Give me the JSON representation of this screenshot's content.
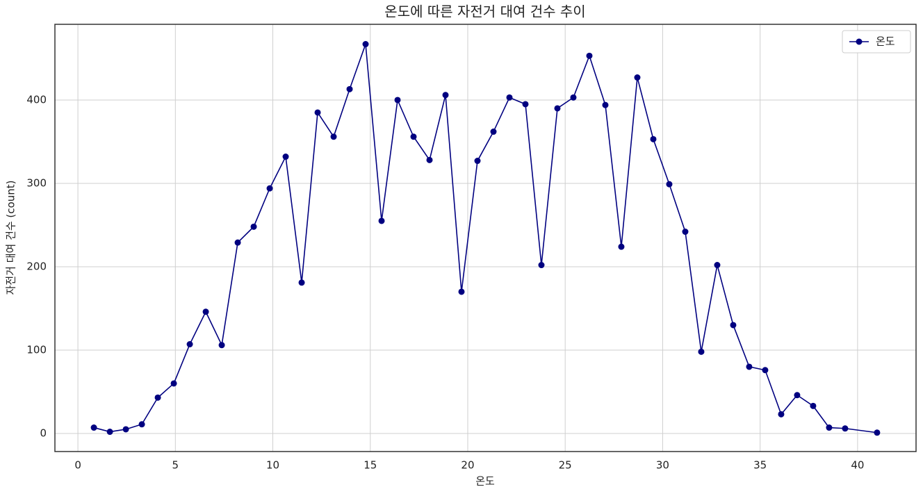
{
  "chart_data": {
    "type": "line",
    "title": "온도에 따른 자전거 대여 건수 추이",
    "x_label": "온도",
    "y_label": "자전거 대여 건수 (count)",
    "x": [
      0.82,
      1.64,
      2.46,
      3.28,
      4.1,
      4.92,
      5.74,
      6.56,
      7.38,
      8.2,
      9.02,
      9.84,
      10.66,
      11.48,
      12.3,
      13.12,
      13.94,
      14.76,
      15.58,
      16.4,
      17.22,
      18.04,
      18.86,
      19.68,
      20.5,
      21.32,
      22.14,
      22.96,
      23.78,
      24.6,
      25.42,
      26.24,
      27.06,
      27.88,
      28.7,
      29.52,
      30.34,
      31.16,
      31.98,
      32.8,
      33.62,
      34.44,
      35.26,
      36.08,
      36.9,
      37.72,
      38.54,
      39.36,
      41.0
    ],
    "series": [
      {
        "name": "온도",
        "color": "#000080",
        "values": [
          7,
          2,
          5,
          11,
          43,
          60,
          107,
          146,
          106,
          229,
          248,
          294,
          332,
          181,
          385,
          356,
          413,
          467,
          255,
          400,
          356,
          328,
          406,
          170,
          327,
          362,
          403,
          395,
          202,
          390,
          403,
          453,
          394,
          224,
          427,
          353,
          299,
          242,
          98,
          202,
          130,
          80,
          76,
          23,
          46,
          33,
          7,
          6,
          1
        ]
      }
    ],
    "xlim": [
      -1.18,
      43.0
    ],
    "ylim": [
      -21.7,
      490.8
    ],
    "xticks": [
      0,
      5,
      10,
      15,
      20,
      25,
      30,
      35,
      40
    ],
    "yticks": [
      0,
      100,
      200,
      300,
      400
    ],
    "grid": true,
    "legend": "upper right"
  }
}
